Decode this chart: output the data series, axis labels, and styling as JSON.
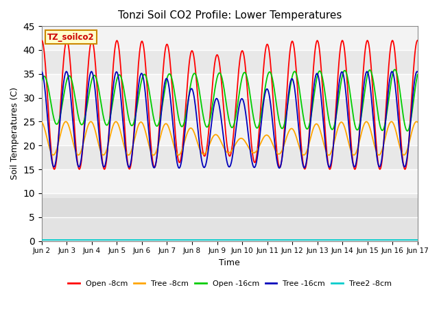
{
  "title": "Tonzi Soil CO2 Profile: Lower Temperatures",
  "xlabel": "Time",
  "ylabel": "Soil Temperatures (C)",
  "ylim": [
    0,
    45
  ],
  "yticks": [
    0,
    5,
    10,
    15,
    20,
    25,
    30,
    35,
    40,
    45
  ],
  "xtick_labels": [
    "Jun 2",
    "Jun 3",
    "Jun 4",
    "Jun 5",
    "Jun 6",
    "Jun 7",
    "Jun 8",
    "Jun 9",
    "Jun 10",
    "Jun 11",
    "Jun 12",
    "Jun 13",
    "Jun 14",
    "Jun 15",
    "Jun 16",
    "Jun 17"
  ],
  "colors": {
    "open_8cm": "#ff0000",
    "tree_8cm": "#ffa500",
    "open_16cm": "#00cc00",
    "tree_16cm": "#0000bb",
    "tree2_8cm": "#00cccc",
    "background_dark": "#d8d8d8",
    "background_light": "#e8e8e8",
    "band_white": "#f0f0f0"
  },
  "legend_labels": [
    "Open -8cm",
    "Tree -8cm",
    "Open -16cm",
    "Tree -16cm",
    "Tree2 -8cm"
  ],
  "annotation_text": "TZ_soilco2",
  "annotation_color": "#cc0000",
  "annotation_bg": "#ffffcc",
  "annotation_border": "#cc8800",
  "n_points": 720,
  "days": 15
}
